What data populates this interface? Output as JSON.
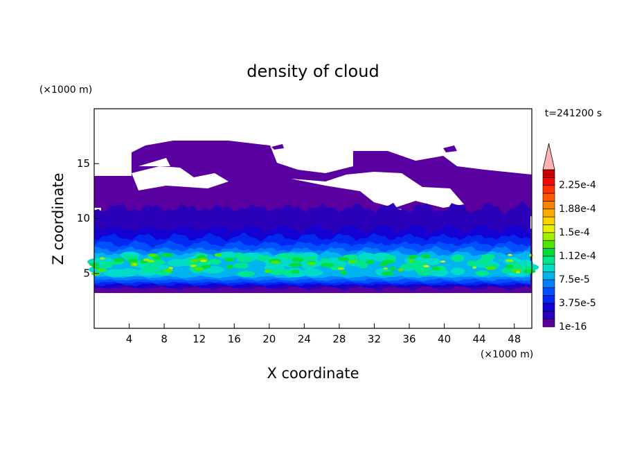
{
  "chart_data": {
    "type": "contour",
    "title": "density of cloud",
    "xlabel": "X coordinate",
    "ylabel": "Z coordinate",
    "x_unit": "(×1000 m)",
    "y_unit": "(×1000 m)",
    "time_label": "t=241200 s",
    "xlim": [
      0,
      50
    ],
    "ylim": [
      0,
      20
    ],
    "xticks": [
      4,
      8,
      12,
      16,
      20,
      24,
      28,
      32,
      36,
      40,
      44,
      48
    ],
    "yticks": [
      5,
      10,
      15
    ],
    "colorbar_levels": [
      {
        "value": 1e-16,
        "label": "1e-16"
      },
      {
        "value": 3.75e-05,
        "label": "3.75e-5"
      },
      {
        "value": 7.5e-05,
        "label": "7.5e-5"
      },
      {
        "value": 0.000112,
        "label": "1.12e-4"
      },
      {
        "value": 0.00015,
        "label": "1.5e-4"
      },
      {
        "value": 0.000188,
        "label": "1.88e-4"
      },
      {
        "value": 0.000225,
        "label": "2.25e-4"
      }
    ],
    "colors": [
      "#5a00a0",
      "#2a00b8",
      "#1400d2",
      "#0028f0",
      "#0050ff",
      "#0080ff",
      "#00b4f0",
      "#00dcc8",
      "#00e68c",
      "#00dc3c",
      "#50e600",
      "#a0f000",
      "#e6f000",
      "#ffd200",
      "#ffaa00",
      "#ff8200",
      "#ff5a00",
      "#ff3200",
      "#f00a00",
      "#c80000"
    ],
    "extend_color": "#ffb4b4"
  }
}
